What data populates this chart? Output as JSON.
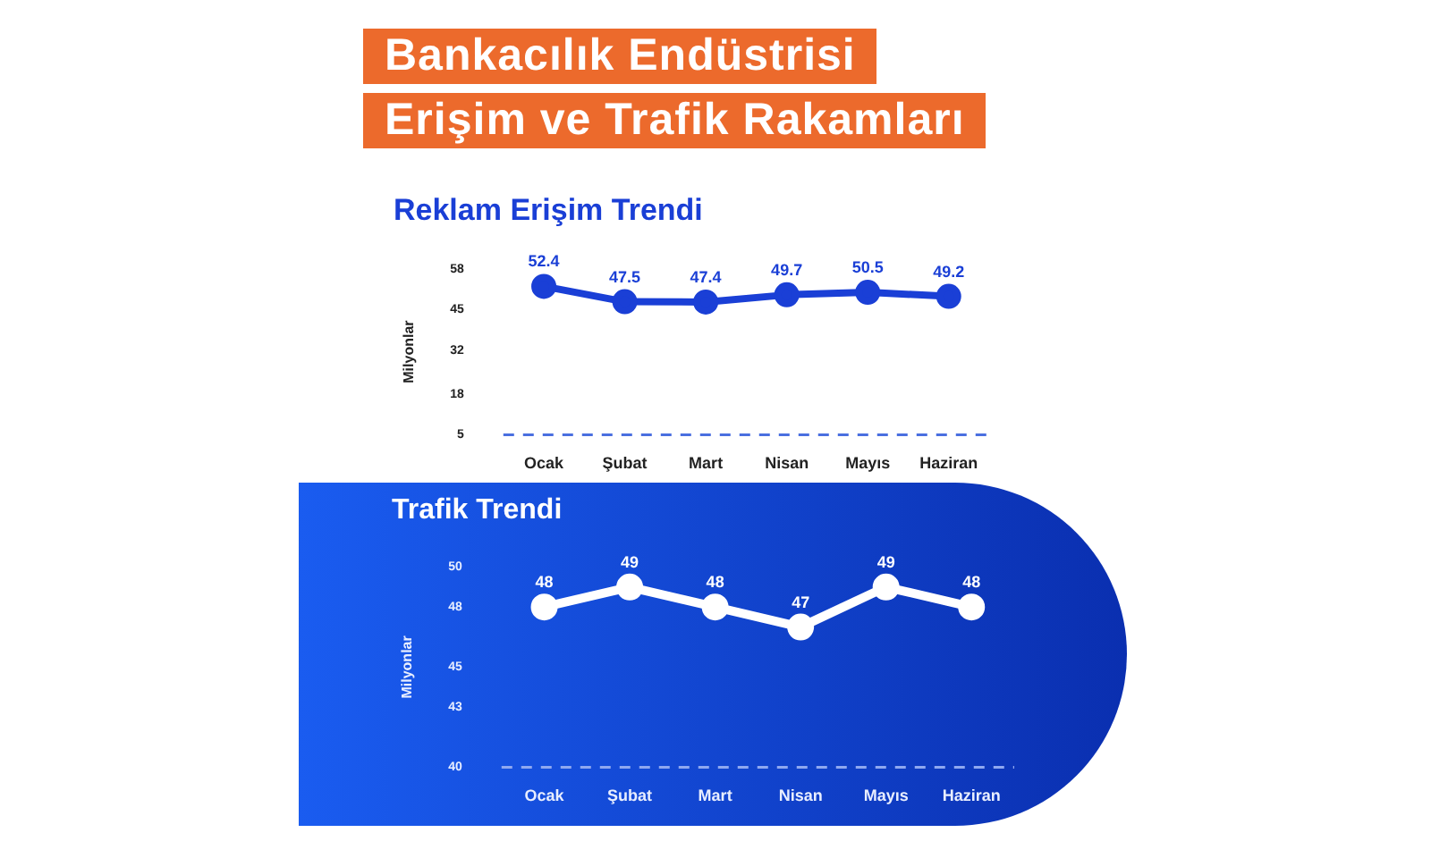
{
  "chart_data": [
    {
      "type": "line",
      "title": "Reklam Erişim Trendi",
      "annotations": [
        "Bankacılık Endüstrisi",
        "Erişim ve Trafik Rakamları"
      ],
      "ylabel": "Milyonlar",
      "categories": [
        "Ocak",
        "Şubat",
        "Mart",
        "Nisan",
        "Mayıs",
        "Haziran"
      ],
      "series": [
        {
          "color": "#1a3fd6",
          "values": [
            52.4,
            47.5,
            47.4,
            49.7,
            50.5,
            49.2
          ]
        }
      ],
      "ylim": [
        5,
        58
      ],
      "yticks": [
        5,
        18,
        32,
        45,
        58
      ],
      "grid": false,
      "legend": false,
      "marker": "circle",
      "line_style": "solid",
      "data_labels": true,
      "ref_lines": [
        {
          "axis": "y",
          "value": 5,
          "color": "#4a6fe0",
          "line_style": "dashed"
        }
      ]
    },
    {
      "type": "line",
      "title": "Trafik Trendi",
      "ylabel": "Milyonlar",
      "categories": [
        "Ocak",
        "Şubat",
        "Mart",
        "Nisan",
        "Mayıs",
        "Haziran"
      ],
      "series": [
        {
          "color": "#ffffff",
          "values": [
            48,
            49,
            48,
            47,
            49,
            48
          ]
        }
      ],
      "ylim": [
        40,
        50
      ],
      "yticks": [
        40,
        43,
        45,
        48,
        50
      ],
      "grid": false,
      "legend": false,
      "marker": "circle",
      "line_style": "solid",
      "data_labels": true,
      "ref_lines": [
        {
          "axis": "y",
          "value": 40,
          "color": "#8fa8f0",
          "line_style": "dashed"
        }
      ]
    }
  ]
}
